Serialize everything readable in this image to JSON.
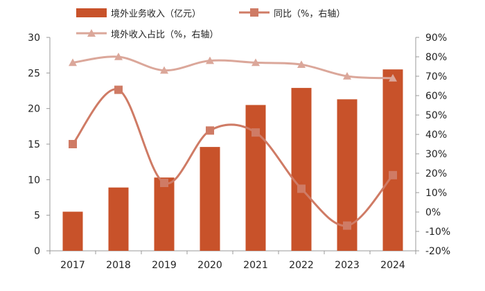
{
  "chart_data": {
    "type": "bar",
    "categories": [
      "2017",
      "2018",
      "2019",
      "2020",
      "2021",
      "2022",
      "2023",
      "2024"
    ],
    "series": [
      {
        "name": "境外业务收入（亿元）",
        "type": "bar",
        "axis": "left",
        "values": [
          5.5,
          8.9,
          10.3,
          14.6,
          20.5,
          22.9,
          21.3,
          25.5
        ]
      },
      {
        "name": "同比（%，右轴）",
        "type": "line",
        "axis": "right",
        "marker": "square",
        "values": [
          35,
          63,
          15,
          42,
          41,
          12,
          -7,
          19
        ]
      },
      {
        "name": "境外收入占比（%，右轴）",
        "type": "line",
        "axis": "right",
        "marker": "triangle",
        "values": [
          77,
          80,
          73,
          78,
          77,
          76,
          70,
          69
        ]
      }
    ],
    "y_left": {
      "min": 0,
      "max": 30,
      "ticks": [
        "0",
        "5",
        "10",
        "15",
        "20",
        "25",
        "30"
      ]
    },
    "y_right": {
      "min": -20,
      "max": 90,
      "ticks": [
        "-20%",
        "-10%",
        "0%",
        "10%",
        "20%",
        "30%",
        "40%",
        "50%",
        "60%",
        "70%",
        "80%",
        "90%"
      ]
    },
    "colors": {
      "bar": "#c8522a",
      "yoy": "#cf7b65",
      "share": "#dba79a",
      "axis": "#999999"
    },
    "grid": false,
    "legend_position": "top"
  }
}
